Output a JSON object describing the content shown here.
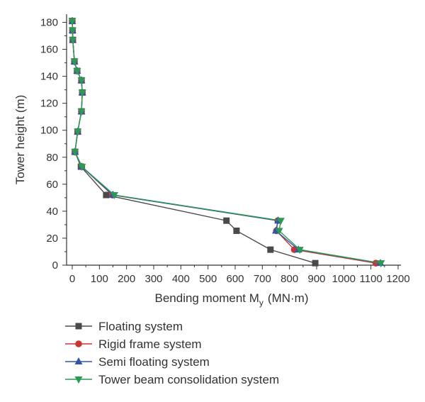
{
  "chart_data": {
    "type": "line",
    "xlabel": "Bending moment M",
    "xlabel_subscript": "y",
    "xlabel_unit": "(MN·m)",
    "ylabel": "Tower height (m)",
    "xlim": [
      0,
      1200
    ],
    "ylim": [
      0,
      185
    ],
    "xticks": [
      0,
      100,
      200,
      300,
      400,
      500,
      600,
      700,
      800,
      900,
      1000,
      1100,
      1200
    ],
    "yticks": [
      0,
      20,
      40,
      60,
      80,
      100,
      120,
      140,
      160,
      180
    ],
    "xtick_labels": [
      "0",
      "100",
      "200",
      "300",
      "400",
      "500",
      "600",
      "700",
      "800",
      "900",
      "1000",
      "1100",
      "1200"
    ],
    "ytick_labels": [
      "0",
      "20",
      "40",
      "60",
      "80",
      "100",
      "120",
      "140",
      "160",
      "180"
    ],
    "legend_position": "bottom",
    "grid": false,
    "series": [
      {
        "name": "Floating system",
        "color": "#4a4a4a",
        "marker": "square",
        "points": [
          [
            895,
            1.5
          ],
          [
            730,
            11.5
          ],
          [
            605,
            25.5
          ],
          [
            568,
            33
          ],
          [
            125,
            52
          ],
          [
            32,
            73
          ],
          [
            10,
            84
          ],
          [
            20,
            99
          ],
          [
            34,
            114
          ],
          [
            37,
            128
          ],
          [
            34,
            137
          ],
          [
            18,
            144
          ],
          [
            8,
            151
          ],
          [
            2,
            167
          ],
          [
            1,
            174
          ],
          [
            0,
            181
          ]
        ]
      },
      {
        "name": "Rigid frame system",
        "color": "#cc3333",
        "marker": "circle",
        "points": [
          [
            1118,
            1.5
          ],
          [
            818,
            11.5
          ],
          [
            752,
            25.5
          ],
          [
            757,
            33
          ],
          [
            148,
            52
          ],
          [
            35,
            73
          ],
          [
            10,
            84
          ],
          [
            20,
            99
          ],
          [
            34,
            114
          ],
          [
            37,
            128
          ],
          [
            34,
            137
          ],
          [
            18,
            144
          ],
          [
            8,
            151
          ],
          [
            2,
            167
          ],
          [
            1,
            174
          ],
          [
            0,
            181
          ]
        ]
      },
      {
        "name": "Semi floating system",
        "color": "#3355aa",
        "marker": "triangle-up",
        "points": [
          [
            1135,
            1.5
          ],
          [
            833,
            11.5
          ],
          [
            750,
            25.5
          ],
          [
            758,
            33
          ],
          [
            150,
            52
          ],
          [
            35,
            73
          ],
          [
            10,
            84
          ],
          [
            20,
            99
          ],
          [
            34,
            114
          ],
          [
            37,
            128
          ],
          [
            34,
            137
          ],
          [
            18,
            144
          ],
          [
            8,
            151
          ],
          [
            2,
            167
          ],
          [
            1,
            174
          ],
          [
            0,
            181
          ]
        ]
      },
      {
        "name": "Tower beam consolidation system",
        "color": "#2a9a55",
        "marker": "triangle-down",
        "points": [
          [
            1137,
            1.5
          ],
          [
            838,
            11.5
          ],
          [
            762,
            25.5
          ],
          [
            768,
            33
          ],
          [
            155,
            52
          ],
          [
            36,
            73
          ],
          [
            10,
            84
          ],
          [
            20,
            99
          ],
          [
            34,
            114
          ],
          [
            37,
            128
          ],
          [
            34,
            137
          ],
          [
            18,
            144
          ],
          [
            8,
            151
          ],
          [
            2,
            167
          ],
          [
            1,
            174
          ],
          [
            0,
            181
          ]
        ]
      }
    ]
  }
}
